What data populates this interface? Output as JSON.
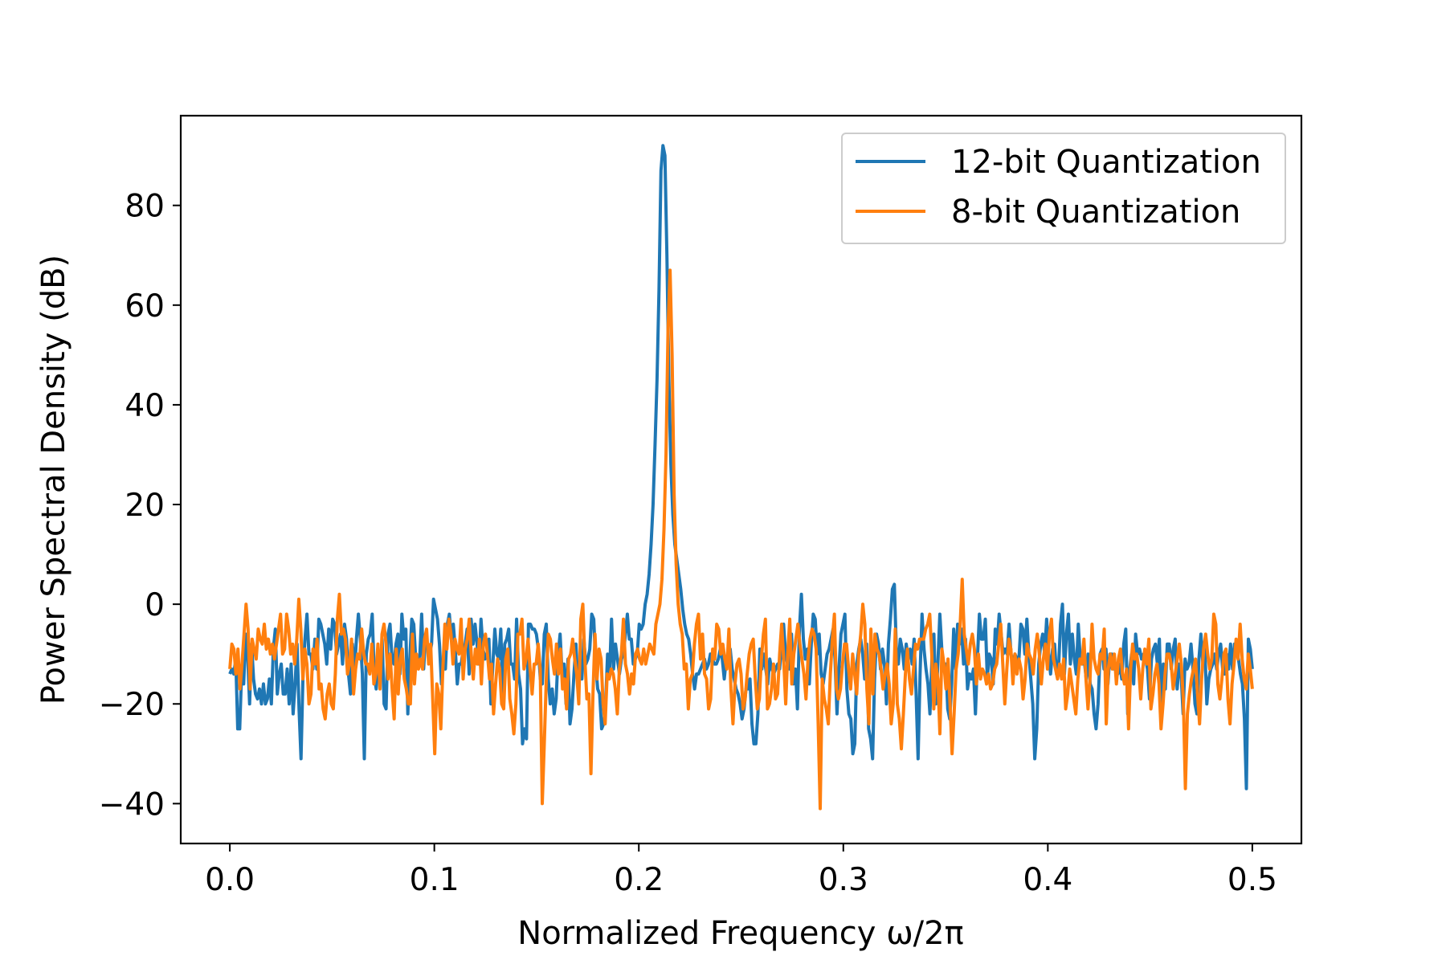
{
  "chart_data": {
    "type": "line",
    "title": "",
    "xlabel": "Normalized Frequency ω/2π",
    "ylabel": "Power Spectral Density (dB)",
    "xlim": [
      -0.024,
      0.524
    ],
    "ylim": [
      -48,
      98
    ],
    "x_ticks": [
      0.0,
      0.1,
      0.2,
      0.3,
      0.4,
      0.5
    ],
    "x_tick_labels": [
      "0.0",
      "0.1",
      "0.2",
      "0.3",
      "0.4",
      "0.5"
    ],
    "y_ticks": [
      -40,
      -20,
      0,
      20,
      40,
      60,
      80
    ],
    "y_tick_labels": [
      "−40",
      "−20",
      "0",
      "20",
      "40",
      "60",
      "80"
    ],
    "grid": false,
    "legend_position": "top-right",
    "x_start": 0.0,
    "x_end": 0.5,
    "series": [
      {
        "name": "12-bit Quantization",
        "color": "#1f77b4",
        "values": [
          -14,
          -13,
          -14,
          -11,
          -25,
          -25,
          -13,
          -16,
          -6,
          -10,
          -20,
          -8,
          -15,
          -18,
          -19,
          -17,
          -20,
          -16,
          -20,
          -19,
          -15,
          -20,
          -9,
          -5,
          -18,
          -14,
          -12,
          -18,
          -18,
          -13,
          -20,
          -12,
          -22,
          -16,
          -8,
          -21,
          -31,
          -14,
          -7,
          -2,
          -10,
          -10,
          -13,
          -7,
          -13,
          -3,
          -4,
          -6,
          -8,
          -12,
          -5,
          -9,
          -3,
          -4,
          -10,
          -8,
          -6,
          -12,
          -4,
          -7,
          -14,
          -18,
          -8,
          -14,
          -7,
          -2,
          -7,
          -14,
          -31,
          -10,
          -7,
          -6,
          -2,
          -14,
          -17,
          -10,
          -15,
          -7,
          -20,
          -21,
          -6,
          -4,
          -11,
          -12,
          -8,
          -6,
          -14,
          -2,
          -7,
          -5,
          -22,
          -11,
          -3,
          -4,
          -11,
          -11,
          -11,
          -2,
          -13,
          -6,
          -8,
          -10,
          -8,
          1,
          -1,
          -3,
          -8,
          -16,
          -12,
          -13,
          -4,
          -2,
          -7,
          -4,
          -9,
          -16,
          -12,
          -12,
          -9,
          -8,
          -5,
          -14,
          -3,
          -8,
          -4,
          -8,
          -12,
          -3,
          -9,
          -11,
          -10,
          -7,
          -20,
          -12,
          -5,
          -10,
          -11,
          -5,
          -18,
          -8,
          -7,
          -5,
          -12,
          -12,
          -15,
          -3,
          -14,
          -17,
          -28,
          -25,
          -27,
          -4,
          -4,
          -5,
          -5,
          -6,
          -9,
          -15,
          -16,
          -6,
          -4,
          -15,
          -20,
          -17,
          -22,
          -19,
          -10,
          -6,
          -14,
          -12,
          -20,
          -11,
          -24,
          -21,
          -14,
          -8,
          -16,
          -12,
          -15,
          -7,
          -12,
          -11,
          -9,
          -2,
          -3,
          -12,
          -17,
          -18,
          -25,
          -24,
          -20,
          -10,
          -14,
          -3,
          -13,
          -8,
          -11,
          -14,
          -11,
          -10,
          -6,
          -2,
          -7,
          -7,
          -12,
          -11,
          -10,
          -4,
          -5,
          -4,
          0,
          2,
          6,
          12,
          20,
          32,
          45,
          63,
          87,
          92,
          90,
          70,
          45,
          28,
          18,
          12,
          9,
          6,
          3,
          -1,
          -4,
          -6,
          -7,
          -10,
          -14,
          -17,
          -14,
          -14,
          -13,
          -12,
          -11,
          -13,
          -12,
          -10,
          -11,
          -12,
          -12,
          -11,
          -9,
          -11,
          -15,
          -11,
          -11,
          -9,
          -13,
          -15,
          -17,
          -18,
          -20,
          -23,
          -21,
          -17,
          -17,
          -15,
          -24,
          -28,
          -28,
          -22,
          -9,
          -13,
          -10,
          -13,
          -16,
          -11,
          -13,
          -14,
          -13,
          -12,
          -13,
          -8,
          -4,
          -10,
          -12,
          -13,
          -6,
          -16,
          -13,
          -21,
          -5,
          2,
          -7,
          -11,
          -9,
          -16,
          -8,
          -2,
          -3,
          -10,
          -6,
          -14,
          -16,
          -13,
          -10,
          -9,
          -7,
          -5,
          -11,
          -22,
          -13,
          -6,
          -4,
          -2,
          -17,
          -22,
          -23,
          -30,
          -28,
          -12,
          -9,
          -7,
          -10,
          -15,
          -8,
          -25,
          -27,
          -31,
          -15,
          -6,
          -8,
          -13,
          -9,
          -12,
          -20,
          -8,
          -3,
          3,
          4,
          -9,
          -12,
          -7,
          -9,
          -13,
          -8,
          -11,
          -9,
          -12,
          -7,
          -18,
          -31,
          -14,
          -2,
          -9,
          -13,
          -16,
          -22,
          -11,
          -6,
          -20,
          -12,
          -2,
          -9,
          -13,
          -12,
          -21,
          -23,
          -16,
          -5,
          -13,
          -4,
          -8,
          -5,
          -12,
          -7,
          -17,
          -14,
          -15,
          -13,
          -22,
          -11,
          -2,
          -7,
          -7,
          -3,
          -15,
          -10,
          -11,
          -16,
          -5,
          -8,
          -2,
          -6,
          -10,
          -9,
          -10,
          -4,
          -10,
          -12,
          -10,
          -11,
          -11,
          -4,
          -5,
          -10,
          -3,
          -10,
          -15,
          -20,
          -31,
          -25,
          -12,
          -8,
          -6,
          -10,
          -3,
          -10,
          -14,
          -9,
          -8,
          -14,
          -13,
          -4,
          0,
          -14,
          -6,
          -2,
          -12,
          -6,
          -11,
          -14,
          -4,
          -11,
          -12,
          -11,
          -15,
          -10,
          -16,
          -17,
          -22,
          -25,
          -20,
          -10,
          -9,
          -13,
          -9,
          -16,
          -10,
          -10,
          -13,
          -13,
          -14,
          -12,
          -15,
          -8,
          -5,
          -22,
          -13,
          -10,
          -16,
          -6,
          -10,
          -9,
          -11,
          -10,
          -11,
          -13,
          -19,
          -11,
          -9,
          -8,
          -12,
          -7,
          -23,
          -12,
          -17,
          -8,
          -8,
          -13,
          -9,
          -7,
          -17,
          -12,
          -14,
          -22,
          -11,
          -13,
          -12,
          -8,
          -13,
          -20,
          -22,
          -11,
          -6,
          -12,
          -9,
          -20,
          -15,
          -13,
          -12,
          -10,
          -13,
          -10,
          -8,
          -13,
          -14,
          -10,
          -13,
          -8,
          -13,
          -8,
          -10,
          -11,
          -14,
          -16,
          -23,
          -37,
          -7,
          -9,
          -13
        ]
      },
      {
        "name": "8-bit Quantization",
        "color": "#ff7f0e",
        "values": [
          -13,
          -8,
          -9,
          -14,
          -9,
          -17,
          -12,
          -6,
          0,
          -5,
          -17,
          -7,
          -9,
          -11,
          -5,
          -7,
          -8,
          -4,
          -9,
          -7,
          -10,
          -8,
          -11,
          -8,
          -5,
          -2,
          -10,
          -9,
          -2,
          -5,
          -10,
          -8,
          -12,
          -7,
          1,
          -5,
          -15,
          -9,
          -12,
          -20,
          -18,
          -9,
          -12,
          -7,
          -17,
          -16,
          -21,
          -23,
          -18,
          -16,
          -20,
          -21,
          -14,
          -3,
          2,
          -6,
          -5,
          -7,
          -14,
          -12,
          -7,
          -18,
          -13,
          -10,
          -11,
          -5,
          -10,
          -12,
          -12,
          -14,
          -8,
          -16,
          -14,
          -8,
          -17,
          -6,
          -4,
          -8,
          -15,
          -10,
          -17,
          -23,
          -9,
          -18,
          -11,
          -9,
          -15,
          -17,
          -20,
          -20,
          -6,
          -16,
          -10,
          -13,
          -11,
          -13,
          -7,
          -5,
          -12,
          -8,
          -19,
          -30,
          -16,
          -18,
          -25,
          -13,
          -4,
          -9,
          -3,
          -6,
          -12,
          -7,
          -9,
          -10,
          -3,
          -15,
          -9,
          -7,
          -3,
          -10,
          -15,
          -9,
          -12,
          -7,
          -16,
          -8,
          -6,
          -10,
          -15,
          -12,
          -22,
          -16,
          -11,
          -13,
          -20,
          -21,
          -11,
          -9,
          -19,
          -22,
          -26,
          -20,
          -6,
          -6,
          -3,
          -13,
          -11,
          -7,
          -13,
          -18,
          -12,
          -12,
          -8,
          -13,
          -40,
          -28,
          -15,
          -6,
          -7,
          -11,
          -14,
          -8,
          -14,
          -9,
          -17,
          -15,
          -21,
          -11,
          -10,
          -7,
          -11,
          -14,
          -20,
          -3,
          0,
          -11,
          -19,
          -18,
          -34,
          -18,
          -6,
          -15,
          -9,
          -11,
          -20,
          -24,
          -14,
          -15,
          -13,
          -14,
          -17,
          -22,
          -13,
          -10,
          -3,
          -12,
          -14,
          -18,
          -14,
          -16,
          -10,
          -9,
          -11,
          -12,
          -9,
          -12,
          -10,
          -8,
          -9,
          -10,
          -4,
          -2,
          0,
          5,
          15,
          30,
          55,
          67,
          50,
          22,
          8,
          0,
          -4,
          -6,
          -13,
          -12,
          -21,
          -15,
          -14,
          -8,
          -4,
          -2,
          -11,
          -6,
          -14,
          -15,
          -21,
          -19,
          -9,
          -11,
          -4,
          -5,
          -10,
          -8,
          -11,
          -13,
          -5,
          -17,
          -24,
          -16,
          -12,
          -11,
          -14,
          -21,
          -19,
          -14,
          -10,
          -8,
          -7,
          -15,
          -21,
          -19,
          -11,
          -6,
          -3,
          -21,
          -20,
          -17,
          -12,
          -19,
          -18,
          -10,
          -4,
          -11,
          -20,
          -10,
          -3,
          -16,
          -10,
          -7,
          -4,
          -8,
          -11,
          -14,
          -19,
          -11,
          -7,
          -5,
          -6,
          -9,
          -24,
          -41,
          -15,
          -19,
          -21,
          -24,
          -14,
          -7,
          -2,
          -17,
          -19,
          -17,
          -12,
          -8,
          -8,
          -13,
          -17,
          -10,
          -14,
          -18,
          -10,
          -6,
          0,
          -4,
          -17,
          -24,
          -5,
          -18,
          -6,
          -9,
          -10,
          -13,
          -17,
          -14,
          -12,
          -16,
          -24,
          -20,
          -5,
          -20,
          -23,
          -29,
          -22,
          -14,
          -9,
          -15,
          -18,
          -13,
          -8,
          -9,
          -7,
          -7,
          -7,
          -5,
          -4,
          -2,
          -10,
          -21,
          -12,
          -15,
          -26,
          -9,
          -12,
          -17,
          -11,
          -20,
          -30,
          -22,
          -13,
          -10,
          -4,
          5,
          -6,
          -9,
          -12,
          -8,
          -6,
          -9,
          -16,
          -10,
          -15,
          -13,
          -14,
          -16,
          -14,
          -17,
          -16,
          -13,
          -12,
          -8,
          -4,
          -12,
          -20,
          -13,
          -7,
          -9,
          -16,
          -10,
          -14,
          -11,
          -13,
          -19,
          -15,
          -8,
          -10,
          -11,
          -14,
          -9,
          -6,
          -10,
          -16,
          -11,
          -8,
          -13,
          -6,
          -3,
          -11,
          -13,
          -15,
          -12,
          -15,
          -11,
          -21,
          -18,
          -13,
          -16,
          -19,
          -22,
          -15,
          -11,
          -12,
          -7,
          -15,
          -21,
          -15,
          -4,
          -11,
          -13,
          -14,
          -10,
          -11,
          -5,
          -24,
          -13,
          -10,
          -13,
          -10,
          -16,
          -11,
          -9,
          -14,
          -16,
          -13,
          -25,
          -13,
          -8,
          -11,
          -10,
          -13,
          -19,
          -13,
          -9,
          -12,
          -7,
          -21,
          -18,
          -14,
          -12,
          -16,
          -25,
          -20,
          -14,
          -10,
          -10,
          -12,
          -17,
          -14,
          -11,
          -8,
          -12,
          -19,
          -37,
          -22,
          -18,
          -15,
          -13,
          -11,
          -18,
          -24,
          -15,
          -9,
          -6,
          -10,
          -13,
          -11,
          -2,
          -4,
          -16,
          -19,
          -15,
          -10,
          -9,
          -19,
          -24,
          -16,
          -12,
          -7,
          -11,
          -4,
          -11,
          -15,
          -17,
          -10,
          -13,
          -17
        ]
      }
    ]
  }
}
